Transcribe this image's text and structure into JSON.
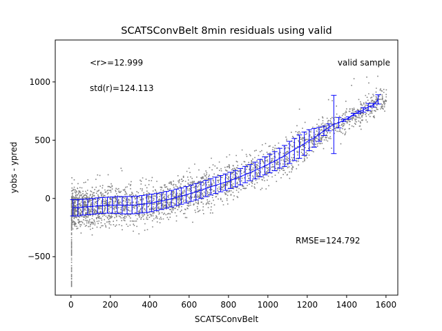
{
  "chart_data": {
    "type": "scatter",
    "title": "SCATSConvBelt 8min residuals using valid",
    "xlabel": "SCATSConvBelt",
    "ylabel": "yobs - ypred",
    "xlim": [
      -80,
      1660
    ],
    "ylim": [
      -830,
      1360
    ],
    "xticks": [
      0,
      200,
      400,
      600,
      800,
      1000,
      1200,
      1400,
      1600
    ],
    "xtick_labels": [
      "0",
      "200",
      "400",
      "600",
      "800",
      "1000",
      "1200",
      "1400",
      "1600"
    ],
    "yticks": [
      -500,
      0,
      500,
      1000
    ],
    "ytick_labels": [
      "−500",
      "0",
      "500",
      "1000"
    ],
    "grid": false,
    "annotations": {
      "mean_r": "<r>=12.999",
      "std_r": "std(r)=124.113",
      "sample": "valid sample",
      "rmse": "RMSE=124.792"
    },
    "colors": {
      "scatter": "#808080",
      "errorbars": "#0000ff"
    },
    "binned_means": {
      "x": [
        10,
        35,
        60,
        85,
        110,
        135,
        160,
        185,
        210,
        235,
        260,
        285,
        310,
        335,
        360,
        385,
        410,
        435,
        460,
        485,
        510,
        535,
        560,
        585,
        610,
        635,
        660,
        685,
        710,
        735,
        760,
        785,
        810,
        835,
        860,
        885,
        910,
        935,
        960,
        985,
        1010,
        1035,
        1060,
        1085,
        1110,
        1135,
        1160,
        1185,
        1210,
        1235,
        1260,
        1285,
        1310,
        1335,
        1360,
        1385,
        1410,
        1435,
        1460,
        1485,
        1510,
        1535,
        1560
      ],
      "y": [
        -80,
        -80,
        -75,
        -72,
        -68,
        -63,
        -60,
        -58,
        -57,
        -57,
        -58,
        -58,
        -57,
        -55,
        -50,
        -45,
        -38,
        -30,
        -22,
        -12,
        -2,
        10,
        20,
        32,
        45,
        57,
        70,
        85,
        100,
        113,
        127,
        140,
        155,
        170,
        187,
        205,
        222,
        240,
        260,
        280,
        300,
        320,
        345,
        365,
        395,
        420,
        445,
        470,
        500,
        520,
        550,
        580,
        610,
        635,
        650,
        670,
        690,
        720,
        740,
        760,
        785,
        800,
        850
      ],
      "yerr": [
        70,
        70,
        68,
        68,
        68,
        68,
        68,
        68,
        70,
        72,
        74,
        75,
        75,
        75,
        75,
        75,
        75,
        74,
        73,
        72,
        71,
        70,
        70,
        70,
        70,
        70,
        70,
        70,
        70,
        70,
        70,
        70,
        70,
        70,
        70,
        70,
        70,
        72,
        75,
        78,
        80,
        82,
        85,
        90,
        95,
        95,
        100,
        100,
        90,
        80,
        60,
        40,
        30,
        250,
        45,
        10,
        10,
        10,
        10,
        20,
        30,
        15,
        40
      ]
    }
  }
}
